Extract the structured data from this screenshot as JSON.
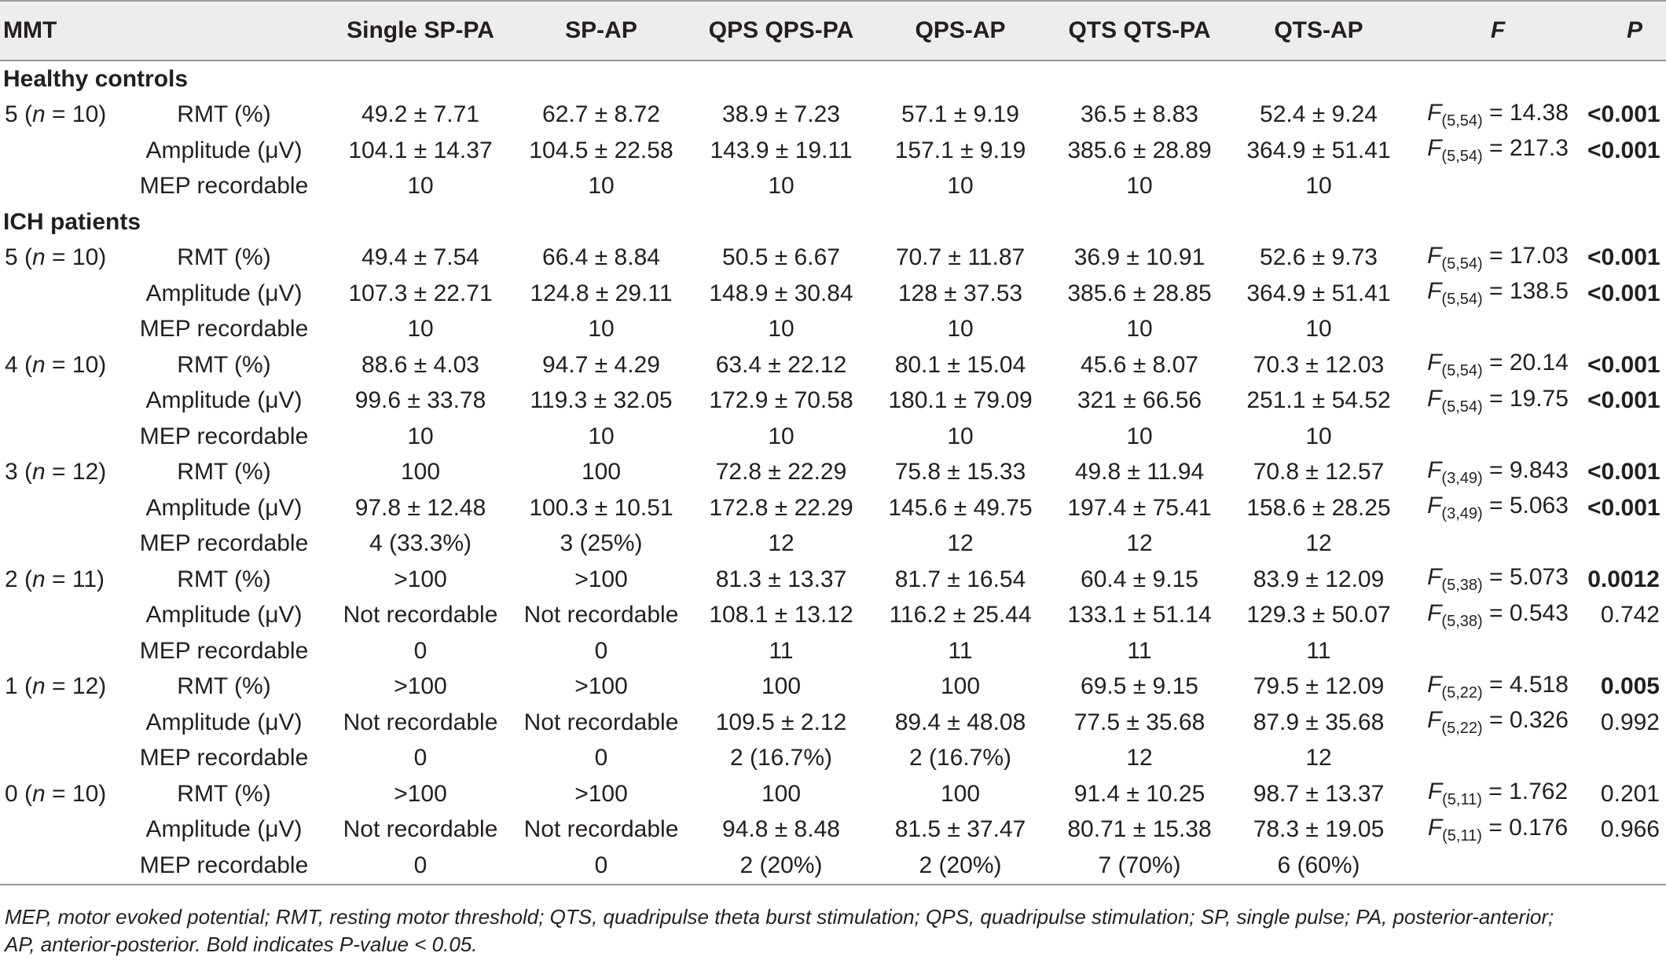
{
  "header": {
    "mmt": "MMT",
    "measure": "",
    "cols": [
      "Single SP-PA",
      "SP-AP",
      "QPS QPS-PA",
      "QPS-AP",
      "QTS QTS-PA",
      "QTS-AP"
    ],
    "f": "F",
    "p": "P"
  },
  "groups": [
    {
      "title": "Healthy controls",
      "blocks": [
        {
          "mmt_main": "5 (",
          "mmt_n": "n",
          "mmt_rest": " = 10)",
          "rows": [
            {
              "label": "RMT (%)",
              "values": [
                "49.2 ± 7.71",
                "62.7 ± 8.72",
                "38.9 ± 7.23",
                "57.1 ± 9.19",
                "36.5 ± 8.83",
                "52.4 ± 9.24"
              ],
              "f_sub": "(5,54)",
              "f_val": " = 14.38",
              "p": "<0.001",
              "p_bold": true
            },
            {
              "label": "Amplitude (μV)",
              "values": [
                "104.1 ± 14.37",
                "104.5 ± 22.58",
                "143.9 ± 19.11",
                "157.1 ± 9.19",
                "385.6 ± 28.89",
                "364.9 ± 51.41"
              ],
              "f_sub": "(5,54)",
              "f_val": " = 217.3",
              "p": "<0.001",
              "p_bold": true
            },
            {
              "label": "MEP recordable",
              "values": [
                "10",
                "10",
                "10",
                "10",
                "10",
                "10"
              ],
              "f_sub": "",
              "f_val": "",
              "p": "",
              "p_bold": false
            }
          ]
        }
      ]
    },
    {
      "title": "ICH patients",
      "blocks": [
        {
          "mmt_main": "5 (",
          "mmt_n": "n",
          "mmt_rest": " = 10)",
          "rows": [
            {
              "label": "RMT (%)",
              "values": [
                "49.4 ± 7.54",
                "66.4 ± 8.84",
                "50.5 ± 6.67",
                "70.7 ± 11.87",
                "36.9 ± 10.91",
                "52.6 ± 9.73"
              ],
              "f_sub": "(5,54)",
              "f_val": " = 17.03",
              "p": "<0.001",
              "p_bold": true
            },
            {
              "label": "Amplitude (μV)",
              "values": [
                "107.3 ± 22.71",
                "124.8 ± 29.11",
                "148.9 ± 30.84",
                "128 ± 37.53",
                "385.6 ± 28.85",
                "364.9 ± 51.41"
              ],
              "f_sub": "(5,54)",
              "f_val": " = 138.5",
              "p": "<0.001",
              "p_bold": true
            },
            {
              "label": "MEP recordable",
              "values": [
                "10",
                "10",
                "10",
                "10",
                "10",
                "10"
              ],
              "f_sub": "",
              "f_val": "",
              "p": "",
              "p_bold": false
            }
          ]
        },
        {
          "mmt_main": "4 (",
          "mmt_n": "n",
          "mmt_rest": " = 10)",
          "rows": [
            {
              "label": "RMT (%)",
              "values": [
                "88.6 ± 4.03",
                "94.7 ± 4.29",
                "63.4 ± 22.12",
                "80.1 ± 15.04",
                "45.6 ± 8.07",
                "70.3 ± 12.03"
              ],
              "f_sub": "(5,54)",
              "f_val": " = 20.14",
              "p": "<0.001",
              "p_bold": true
            },
            {
              "label": "Amplitude (μV)",
              "values": [
                "99.6 ± 33.78",
                "119.3 ± 32.05",
                "172.9 ± 70.58",
                "180.1 ± 79.09",
                "321 ± 66.56",
                "251.1 ± 54.52"
              ],
              "f_sub": "(5,54)",
              "f_val": " = 19.75",
              "p": "<0.001",
              "p_bold": true
            },
            {
              "label": "MEP recordable",
              "values": [
                "10",
                "10",
                "10",
                "10",
                "10",
                "10"
              ],
              "f_sub": "",
              "f_val": "",
              "p": "",
              "p_bold": false
            }
          ]
        },
        {
          "mmt_main": "3 (",
          "mmt_n": "n",
          "mmt_rest": " = 12)",
          "rows": [
            {
              "label": "RMT (%)",
              "values": [
                "100",
                "100",
                "72.8 ± 22.29",
                "75.8 ± 15.33",
                "49.8 ± 11.94",
                "70.8 ± 12.57"
              ],
              "f_sub": "(3,49)",
              "f_val": " = 9.843",
              "p": "<0.001",
              "p_bold": true
            },
            {
              "label": "Amplitude (μV)",
              "values": [
                "97.8 ± 12.48",
                "100.3 ± 10.51",
                "172.8 ± 22.29",
                "145.6 ± 49.75",
                "197.4 ± 75.41",
                "158.6 ± 28.25"
              ],
              "f_sub": "(3,49)",
              "f_val": " = 5.063",
              "p": "<0.001",
              "p_bold": true
            },
            {
              "label": "MEP recordable",
              "values": [
                "4 (33.3%)",
                "3 (25%)",
                "12",
                "12",
                "12",
                "12"
              ],
              "f_sub": "",
              "f_val": "",
              "p": "",
              "p_bold": false
            }
          ]
        },
        {
          "mmt_main": "2 (",
          "mmt_n": "n",
          "mmt_rest": " = 11)",
          "rows": [
            {
              "label": "RMT (%)",
              "values": [
                ">100",
                ">100",
                "81.3 ± 13.37",
                "81.7 ± 16.54",
                "60.4 ± 9.15",
                "83.9 ± 12.09"
              ],
              "f_sub": "(5,38)",
              "f_val": " = 5.073",
              "p": "0.0012",
              "p_bold": true
            },
            {
              "label": "Amplitude (μV)",
              "values": [
                "Not recordable",
                "Not recordable",
                "108.1 ± 13.12",
                "116.2 ± 25.44",
                "133.1 ± 51.14",
                "129.3 ± 50.07"
              ],
              "f_sub": "(5,38)",
              "f_val": " = 0.543",
              "p": "0.742",
              "p_bold": false
            },
            {
              "label": "MEP recordable",
              "values": [
                "0",
                "0",
                "11",
                "11",
                "11",
                "11"
              ],
              "f_sub": "",
              "f_val": "",
              "p": "",
              "p_bold": false
            }
          ]
        },
        {
          "mmt_main": "1 (",
          "mmt_n": "n",
          "mmt_rest": " = 12)",
          "rows": [
            {
              "label": "RMT (%)",
              "values": [
                ">100",
                ">100",
                "100",
                "100",
                "69.5 ± 9.15",
                "79.5 ± 12.09"
              ],
              "f_sub": "(5,22)",
              "f_val": " = 4.518",
              "p": "0.005",
              "p_bold": true
            },
            {
              "label": "Amplitude (μV)",
              "values": [
                "Not recordable",
                "Not recordable",
                "109.5 ± 2.12",
                "89.4 ± 48.08",
                "77.5 ± 35.68",
                "87.9 ± 35.68"
              ],
              "f_sub": "(5,22)",
              "f_val": " = 0.326",
              "p": "0.992",
              "p_bold": false
            },
            {
              "label": "MEP recordable",
              "values": [
                "0",
                "0",
                "2 (16.7%)",
                "2 (16.7%)",
                "12",
                "12"
              ],
              "f_sub": "",
              "f_val": "",
              "p": "",
              "p_bold": false
            }
          ]
        },
        {
          "mmt_main": "0 (",
          "mmt_n": "n",
          "mmt_rest": " = 10)",
          "rows": [
            {
              "label": "RMT (%)",
              "values": [
                ">100",
                ">100",
                "100",
                "100",
                "91.4 ± 10.25",
                "98.7 ± 13.37"
              ],
              "f_sub": "(5,11)",
              "f_val": " = 1.762",
              "p": "0.201",
              "p_bold": false
            },
            {
              "label": "Amplitude (μV)",
              "values": [
                "Not recordable",
                "Not recordable",
                "94.8 ± 8.48",
                "81.5 ± 37.47",
                "80.71 ± 15.38",
                "78.3 ± 19.05"
              ],
              "f_sub": "(5,11)",
              "f_val": " = 0.176",
              "p": "0.966",
              "p_bold": false
            },
            {
              "label": "MEP recordable",
              "values": [
                "0",
                "0",
                "2 (20%)",
                "2 (20%)",
                "7 (70%)",
                "6 (60%)"
              ],
              "f_sub": "",
              "f_val": "",
              "p": "",
              "p_bold": false
            }
          ]
        }
      ]
    }
  ],
  "footnote": {
    "line1": "MEP, motor evoked potential; RMT, resting motor threshold; QTS, quadripulse theta burst stimulation; QPS, quadripulse stimulation; SP, single pulse; PA, posterior-anterior;",
    "line2": "AP, anterior-posterior. Bold indicates P-value < 0.05."
  }
}
